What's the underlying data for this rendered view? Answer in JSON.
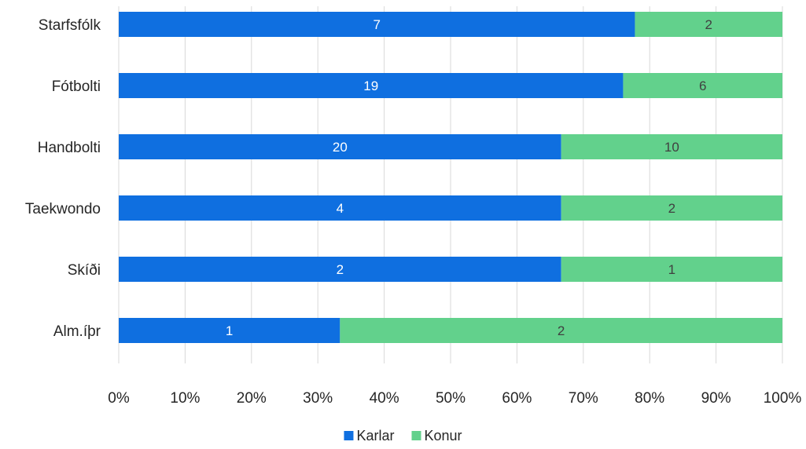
{
  "chart_data": {
    "type": "bar",
    "orientation": "horizontal",
    "stacked": "percent",
    "categories": [
      "Starfsfólk",
      "Fótbolti",
      "Handbolti",
      "Taekwondo",
      "Skíði",
      "Alm.íþr"
    ],
    "series": [
      {
        "name": "Karlar",
        "color": "#0f6fe0",
        "label_color": "#ffffff",
        "values": [
          7,
          19,
          20,
          4,
          2,
          1
        ]
      },
      {
        "name": "Konur",
        "color": "#62d18c",
        "label_color": "#404040",
        "values": [
          2,
          6,
          10,
          2,
          1,
          2
        ]
      }
    ],
    "x_ticks": [
      "0%",
      "10%",
      "20%",
      "30%",
      "40%",
      "50%",
      "60%",
      "70%",
      "80%",
      "90%",
      "100%"
    ],
    "xlim": [
      0,
      1
    ],
    "grid": true,
    "legend": "bottom",
    "title": "",
    "xlabel": "",
    "ylabel": ""
  }
}
